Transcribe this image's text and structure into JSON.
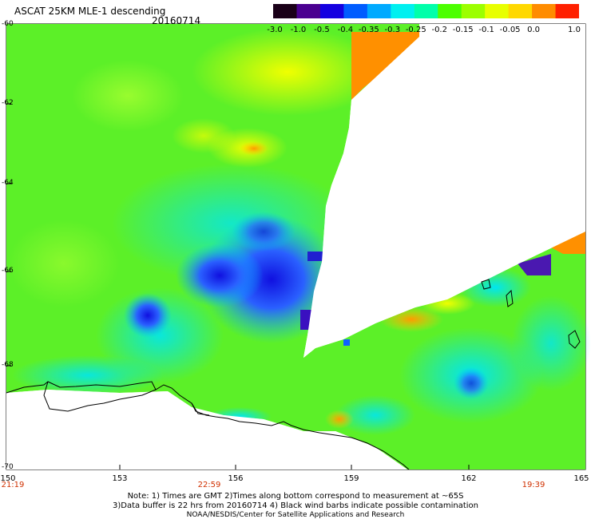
{
  "header": {
    "title": "ASCAT 25KM MLE-1 descending",
    "date": "20160714"
  },
  "colorbar": {
    "labels": [
      "-3.0",
      "-1.0",
      "-0.5",
      "-0.4",
      "-0.35",
      "-0.3",
      "-0.25",
      "-0.2",
      "-0.15",
      "-0.1",
      "-0.05",
      "0.0",
      "1.0"
    ],
    "colors": [
      "#1a0018",
      "#4a0090",
      "#1400e0",
      "#005cff",
      "#00aaff",
      "#00f0f0",
      "#00ffaa",
      "#4cff00",
      "#9cff00",
      "#e8ff00",
      "#ffd800",
      "#ff8c00",
      "#ff2000"
    ]
  },
  "axes": {
    "lat_labels": [
      "-60",
      "-62",
      "-64",
      "-66",
      "-68",
      "-70"
    ],
    "lon_labels": [
      "150",
      "153",
      "156",
      "159",
      "162",
      "165"
    ],
    "time_labels": [
      "21:19",
      "22:59",
      "19:39"
    ]
  },
  "notes": {
    "line1": "Note: 1) Times are GMT 2)Times along bottom correspond to measurement at ~65S",
    "line2": "3)Data buffer is 22 hrs from 20160714 4) Black wind barbs indicate possible contamination",
    "line3": "NOAA/NESDIS/Center for Satellite Applications and Research"
  }
}
